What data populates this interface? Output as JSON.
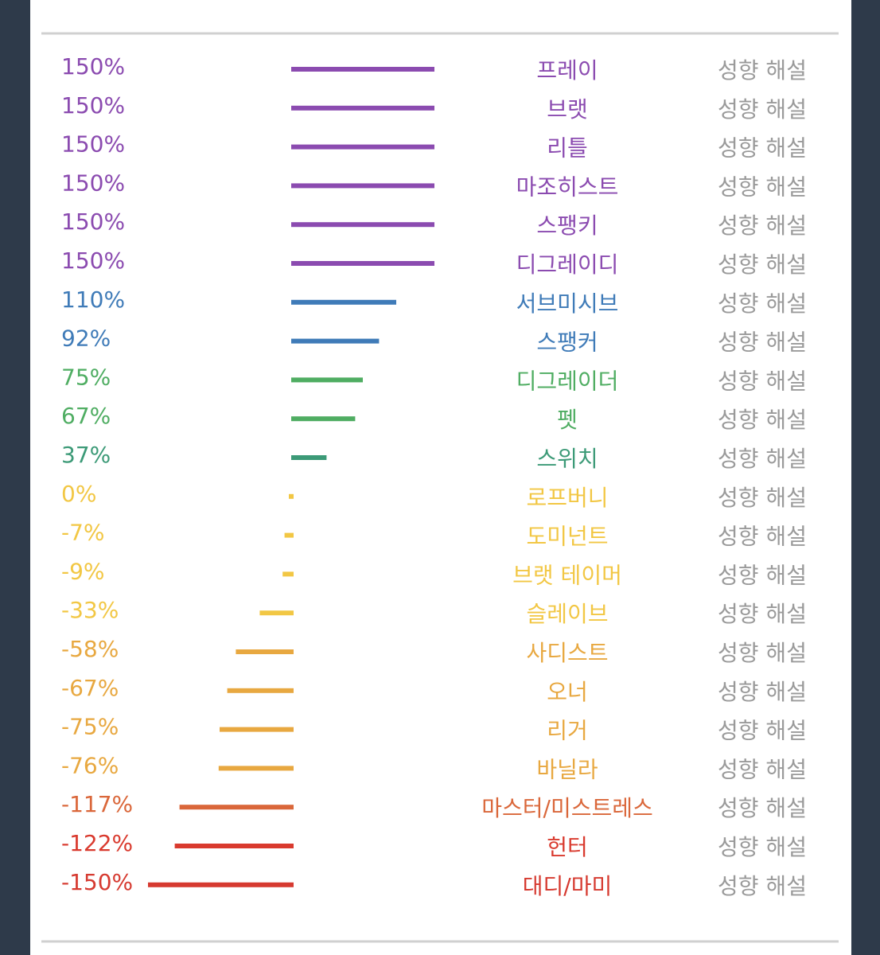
{
  "chart_data": {
    "type": "bar",
    "categories": [
      "프레이",
      "브랫",
      "리틀",
      "마조히스트",
      "스팽키",
      "디그레이디",
      "서브미시브",
      "스팽커",
      "디그레이더",
      "펫",
      "스위치",
      "로프버니",
      "도미넌트",
      "브랫 테이머",
      "슬레이브",
      "사디스트",
      "오너",
      "리거",
      "바닐라",
      "마스터/미스트레스",
      "헌터",
      "대디/마미"
    ],
    "values": [
      150,
      150,
      150,
      150,
      150,
      150,
      110,
      92,
      75,
      67,
      37,
      0,
      -7,
      -9,
      -33,
      -58,
      -67,
      -75,
      -76,
      -117,
      -122,
      -150
    ],
    "value_labels": [
      "150%",
      "150%",
      "150%",
      "150%",
      "150%",
      "150%",
      "110%",
      "92%",
      "75%",
      "67%",
      "37%",
      "0%",
      "-7%",
      "-9%",
      "-33%",
      "-58%",
      "-67%",
      "-75%",
      "-76%",
      "-117%",
      "-122%",
      "-150%"
    ],
    "colors": [
      "#8b4bb0",
      "#8b4bb0",
      "#8b4bb0",
      "#8b4bb0",
      "#8b4bb0",
      "#8b4bb0",
      "#3f7bb8",
      "#3f7bb8",
      "#4fad62",
      "#4fad62",
      "#3c9a77",
      "#f2c744",
      "#f2c744",
      "#f2c744",
      "#f2c744",
      "#e8a840",
      "#e8a840",
      "#e8a840",
      "#e8a840",
      "#da673a",
      "#d93a2e",
      "#d63a30"
    ],
    "links": [
      "성향 해설",
      "성향 해설",
      "성향 해설",
      "성향 해설",
      "성향 해설",
      "성향 해설",
      "성향 해설",
      "성향 해설",
      "성향 해설",
      "성향 해설",
      "성향 해설",
      "성향 해설",
      "성향 해설",
      "성향 해설",
      "성향 해설",
      "성향 해설",
      "성향 해설",
      "성향 해설",
      "성향 해설",
      "성향 해설",
      "성향 해설",
      "성향 해설"
    ]
  }
}
